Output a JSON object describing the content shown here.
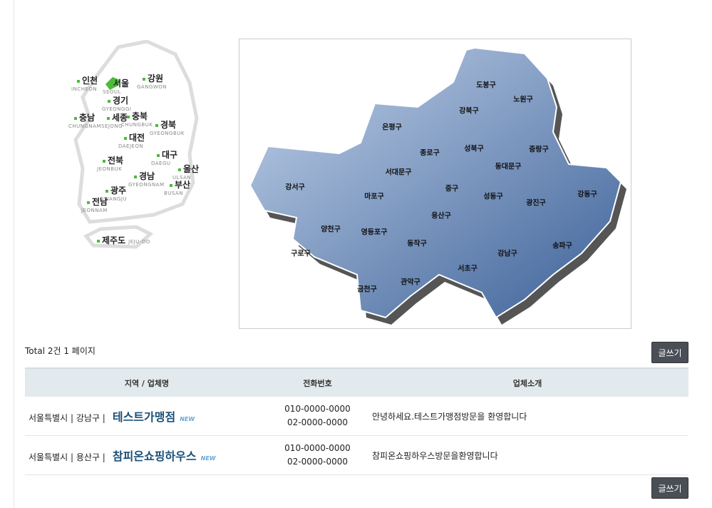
{
  "korea_map": {
    "regions": [
      {
        "ko": "인천",
        "en": "INCHEON"
      },
      {
        "ko": "서울",
        "en": "SEOUL"
      },
      {
        "ko": "강원",
        "en": "GANGWON"
      },
      {
        "ko": "경기",
        "en": "GYEONGGI"
      },
      {
        "ko": "충남",
        "en": "CHUNGNAM"
      },
      {
        "ko": "세종",
        "en": "SEJONG"
      },
      {
        "ko": "충북",
        "en": "CHUNGBUK"
      },
      {
        "ko": "경북",
        "en": "GYEONGBUK"
      },
      {
        "ko": "대전",
        "en": "DAEJEON"
      },
      {
        "ko": "대구",
        "en": "DAEGU"
      },
      {
        "ko": "전북",
        "en": "JEONBUK"
      },
      {
        "ko": "울산",
        "en": "ULSAN"
      },
      {
        "ko": "경남",
        "en": "GYEONGNAM"
      },
      {
        "ko": "부산",
        "en": "BUSAN"
      },
      {
        "ko": "광주",
        "en": "GWANGJU"
      },
      {
        "ko": "전남",
        "en": "JEONNAM"
      },
      {
        "ko": "제주도",
        "en": "JEJU-DO"
      }
    ],
    "selected": "서울",
    "highlight_color": "#4cbb3a"
  },
  "seoul_map": {
    "districts": [
      "도봉구",
      "노원구",
      "강북구",
      "은평구",
      "종로구",
      "성북구",
      "중랑구",
      "서대문구",
      "동대문구",
      "강서구",
      "마포구",
      "중구",
      "성동구",
      "광진구",
      "강동구",
      "용산구",
      "양천구",
      "영등포구",
      "동작구",
      "송파구",
      "구로구",
      "강남구",
      "서초구",
      "관악구",
      "금천구"
    ],
    "fill_color": "#5a7fb0"
  },
  "total": "Total 2건 1 페이지",
  "write_button": "글쓰기",
  "table": {
    "headers": [
      "지역 / 업체명",
      "전화번호",
      "업체소개"
    ],
    "rows": [
      {
        "region": "서울특별시 | 강남구 |",
        "name": "테스트가맹점",
        "badge": "NEW",
        "phone1": "010-0000-0000",
        "phone2": "02-0000-0000",
        "intro": "안녕하세요.테스트가맹점방문을 환영합니다"
      },
      {
        "region": "서울특별시 | 용산구 |",
        "name": "참피온쇼핑하우스",
        "badge": "NEW",
        "phone1": "010-0000-0000",
        "phone2": "02-0000-0000",
        "intro": "참피온쇼핑하우스방문을환영합니다"
      }
    ]
  }
}
